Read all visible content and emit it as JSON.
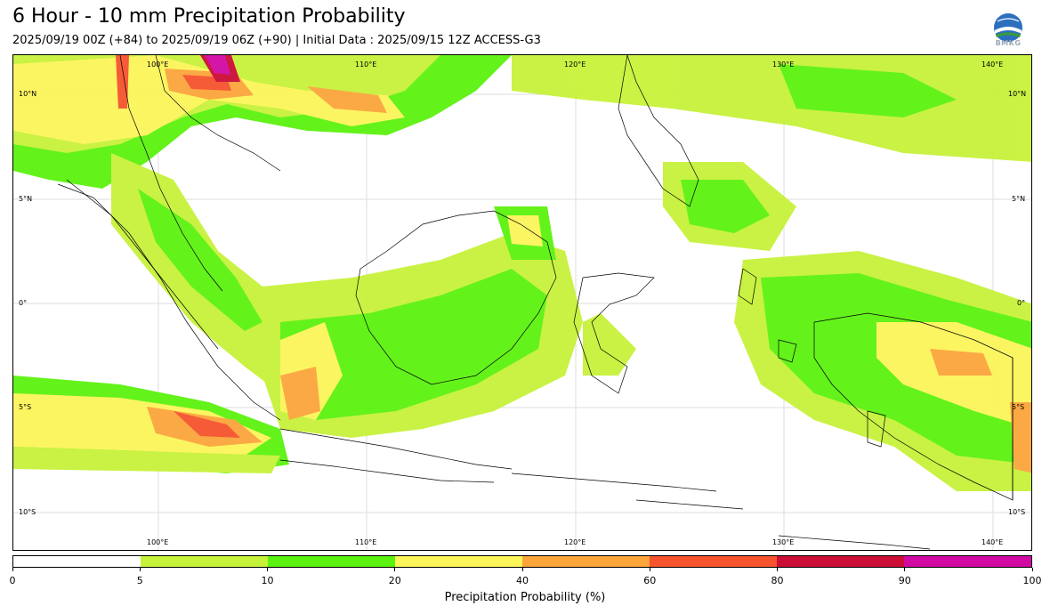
{
  "header": {
    "title": "6 Hour - 10 mm Precipitation Probability",
    "subtitle": "2025/09/19 00Z (+84) to 2025/09/19 06Z (+90) | Initial Data : 2025/09/15 12Z ACCESS-G3",
    "logo_text": "BMKG"
  },
  "map": {
    "top_lon_labels": [
      "100°E",
      "110°E",
      "120°E",
      "130°E",
      "140°E"
    ],
    "bottom_lon_labels": [
      "100°E",
      "110°E",
      "120°E",
      "130°E",
      "140°E"
    ],
    "left_lat_labels": [
      "10°N",
      "5°N",
      "0°",
      "5°S",
      "10°S"
    ],
    "right_lat_labels": [
      "10°N",
      "5°N",
      "0°",
      "5°S",
      "10°S"
    ]
  },
  "colorbar": {
    "colors": [
      "#ffffff",
      "#c7f23a",
      "#5cf20f",
      "#fcf55a",
      "#fba53a",
      "#f6532e",
      "#cc0d35",
      "#d10aa3"
    ],
    "ticks": [
      "0",
      "5",
      "10",
      "20",
      "40",
      "60",
      "80",
      "90",
      "100"
    ],
    "label": "Precipitation Probability (%)"
  }
}
